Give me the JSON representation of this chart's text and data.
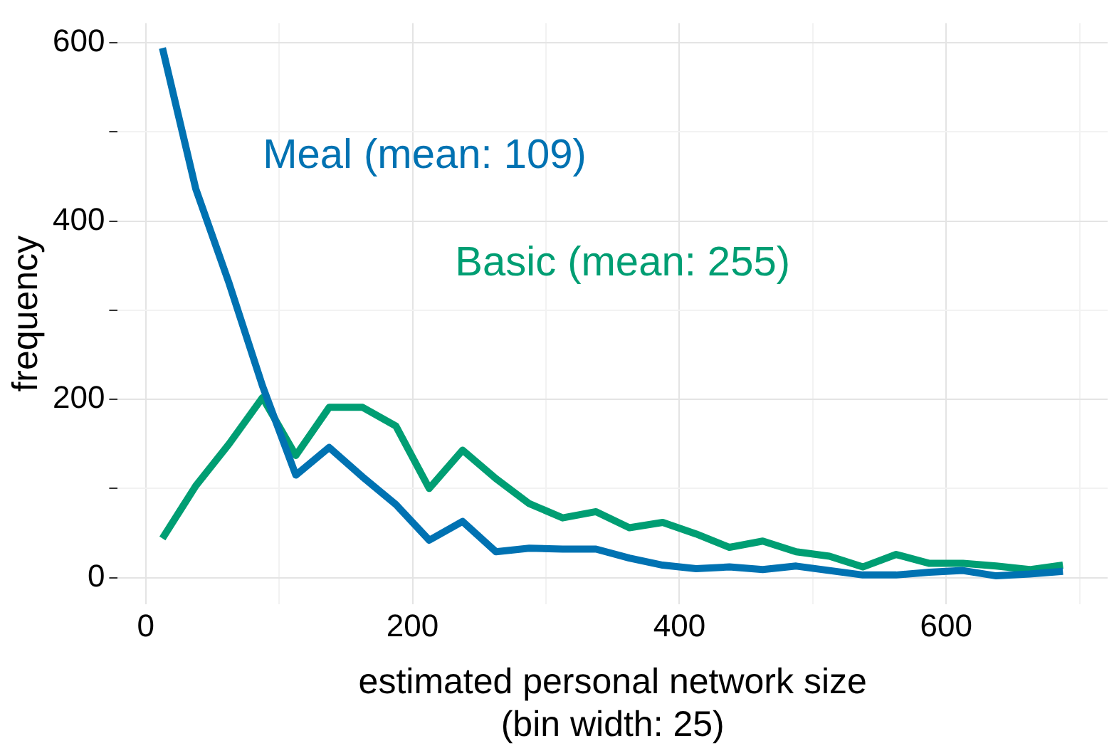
{
  "chart_data": {
    "type": "line",
    "xlabel": "estimated personal network size\n(bin width: 25)",
    "ylabel": "frequency",
    "x": [
      12.5,
      37.5,
      62.5,
      87.5,
      112.5,
      137.5,
      162.5,
      187.5,
      212.5,
      237.5,
      262.5,
      287.5,
      312.5,
      337.5,
      362.5,
      387.5,
      412.5,
      437.5,
      462.5,
      487.5,
      512.5,
      537.5,
      562.5,
      587.5,
      612.5,
      637.5,
      662.5,
      687.5
    ],
    "series": [
      {
        "name": "Meal (mean: 109)",
        "color": "#0072b2",
        "values": [
          594,
          436,
          330,
          215,
          115,
          146,
          113,
          82,
          42,
          63,
          29,
          33,
          32,
          32,
          22,
          14,
          10,
          12,
          9,
          13,
          8,
          3,
          3,
          6,
          8,
          2,
          4,
          7
        ]
      },
      {
        "name": "Basic (mean: 255)",
        "color": "#009e73",
        "values": [
          44,
          103,
          150,
          202,
          137,
          191,
          191,
          170,
          100,
          143,
          111,
          83,
          67,
          74,
          56,
          62,
          49,
          34,
          41,
          29,
          24,
          12,
          26,
          16,
          16,
          13,
          9,
          14
        ]
      }
    ],
    "xlim": [
      -21,
      721
    ],
    "xticks": [
      0,
      {
        "value": 100,
        "label": null
      },
      200,
      {
        "value": 300,
        "label": null
      },
      400,
      {
        "value": 500,
        "label": null
      },
      600,
      {
        "value": 700,
        "label": null
      }
    ],
    "ylim": [
      -30,
      622
    ],
    "yticks": [
      0,
      {
        "value": 100,
        "label": null
      },
      200,
      {
        "value": 300,
        "label": null
      },
      400,
      {
        "value": 500,
        "label": null
      },
      600
    ],
    "grid": true,
    "legend": false,
    "marker": "none",
    "line_style": "solid"
  }
}
